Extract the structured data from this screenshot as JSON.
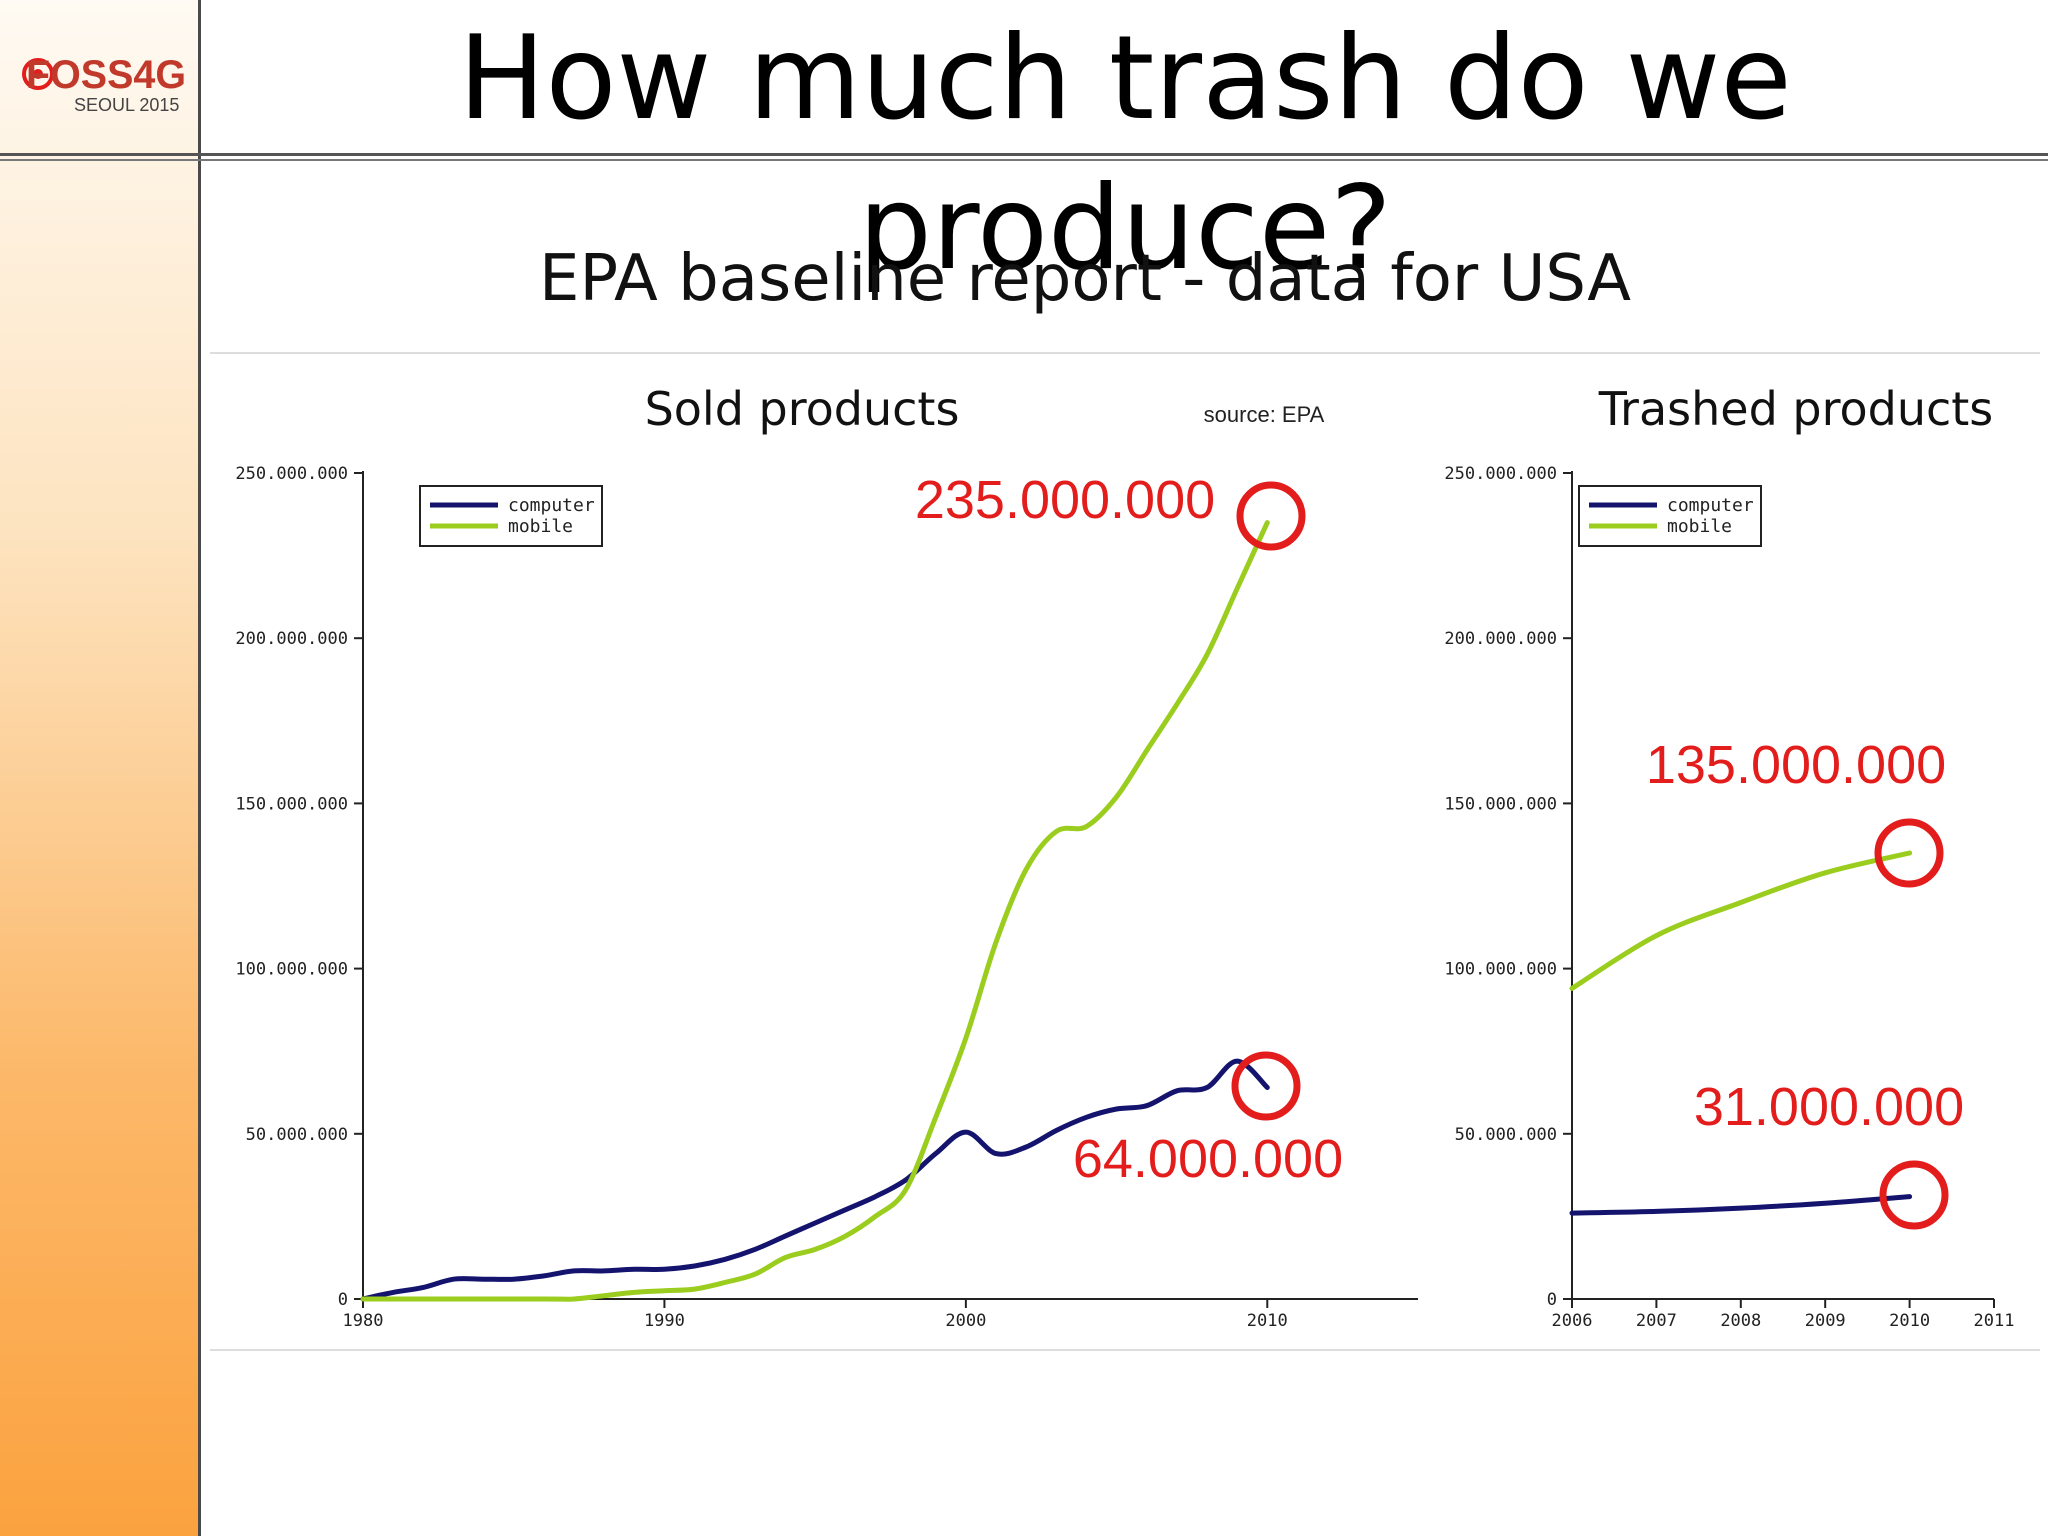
{
  "slide": {
    "title": "How much trash do we produce?",
    "logo": {
      "text": "FOSS4G",
      "subtext": "SEOUL 2015"
    }
  },
  "figure": {
    "heading": "EPA baseline report - data for USA",
    "source": "source: EPA"
  },
  "colors": {
    "computer": "#14146e",
    "mobile": "#9acd1e",
    "annotation": "#e31c1c",
    "sidebar_top": "#fffaf3",
    "sidebar_bottom": "#fba23f"
  },
  "chart_data": [
    {
      "type": "line",
      "title": "Sold products",
      "xlabel": "",
      "ylabel": "",
      "xlim": [
        1980,
        2015
      ],
      "ylim": [
        0,
        250000000
      ],
      "xticks": [
        1980,
        1990,
        2000,
        2010
      ],
      "xtick_labels": [
        "1980",
        "1990",
        "2000",
        "2010"
      ],
      "yticks": [
        0,
        50000000,
        100000000,
        150000000,
        200000000,
        250000000
      ],
      "ytick_labels": [
        "0",
        "50.000.000",
        "100.000.000",
        "150.000.000",
        "200.000.000",
        "250.000.000"
      ],
      "legend": {
        "position": "top-left",
        "entries": [
          "computer",
          "mobile"
        ]
      },
      "grid": false,
      "series": [
        {
          "name": "computer",
          "x": [
            1980,
            1981,
            1982,
            1983,
            1984,
            1985,
            1986,
            1987,
            1988,
            1989,
            1990,
            1991,
            1992,
            1993,
            1994,
            1995,
            1996,
            1997,
            1998,
            1999,
            2000,
            2001,
            2002,
            2003,
            2004,
            2005,
            2006,
            2007,
            2008,
            2009,
            2010
          ],
          "y": [
            0,
            2000000,
            3500000,
            6000000,
            6000000,
            6000000,
            7000000,
            8500000,
            8500000,
            9000000,
            9000000,
            10000000,
            12000000,
            15000000,
            19000000,
            23000000,
            27000000,
            31000000,
            36000000,
            44000000,
            50500000,
            44000000,
            46000000,
            51000000,
            55000000,
            57500000,
            58500000,
            63000000,
            64000000,
            72000000,
            64000000
          ]
        },
        {
          "name": "mobile",
          "x": [
            1980,
            1986,
            1987,
            1988,
            1989,
            1990,
            1991,
            1992,
            1993,
            1994,
            1995,
            1996,
            1997,
            1998,
            1999,
            2000,
            2001,
            2002,
            2003,
            2004,
            2005,
            2006,
            2007,
            2008,
            2009,
            2010
          ],
          "y": [
            0,
            0,
            0,
            1000000,
            2000000,
            2500000,
            3000000,
            5000000,
            7500000,
            12500000,
            15000000,
            19000000,
            25000000,
            33000000,
            55000000,
            79000000,
            108000000,
            130000000,
            141500000,
            143000000,
            152000000,
            166000000,
            180000000,
            195000000,
            215000000,
            235000000
          ]
        }
      ],
      "annotations": [
        {
          "text": "235.000.000",
          "series": "mobile",
          "x": 2010,
          "y": 235000000
        },
        {
          "text": "64.000.000",
          "series": "computer",
          "x": 2010,
          "y": 64000000
        }
      ]
    },
    {
      "type": "line",
      "title": "Trashed products",
      "xlabel": "",
      "ylabel": "",
      "xlim": [
        2006,
        2011
      ],
      "ylim": [
        0,
        250000000
      ],
      "xticks": [
        2006,
        2007,
        2008,
        2009,
        2010,
        2011
      ],
      "xtick_labels": [
        "2006",
        "2007",
        "2008",
        "2009",
        "2010",
        "2011"
      ],
      "yticks": [
        0,
        50000000,
        100000000,
        150000000,
        200000000,
        250000000
      ],
      "ytick_labels": [
        "0",
        "50.000.000",
        "100.000.000",
        "150.000.000",
        "200.000.000",
        "250.000.000"
      ],
      "legend": {
        "position": "top-left",
        "entries": [
          "computer",
          "mobile"
        ]
      },
      "grid": false,
      "series": [
        {
          "name": "computer",
          "x": [
            2006,
            2007,
            2008,
            2009,
            2010
          ],
          "y": [
            26000000,
            26500000,
            27500000,
            29000000,
            31000000
          ]
        },
        {
          "name": "mobile",
          "x": [
            2006,
            2007,
            2008,
            2009,
            2010
          ],
          "y": [
            94000000,
            110000000,
            120000000,
            129000000,
            135000000
          ]
        }
      ],
      "annotations": [
        {
          "text": "135.000.000",
          "series": "mobile",
          "x": 2010,
          "y": 135000000
        },
        {
          "text": "31.000.000",
          "series": "computer",
          "x": 2010,
          "y": 31000000
        }
      ]
    }
  ]
}
